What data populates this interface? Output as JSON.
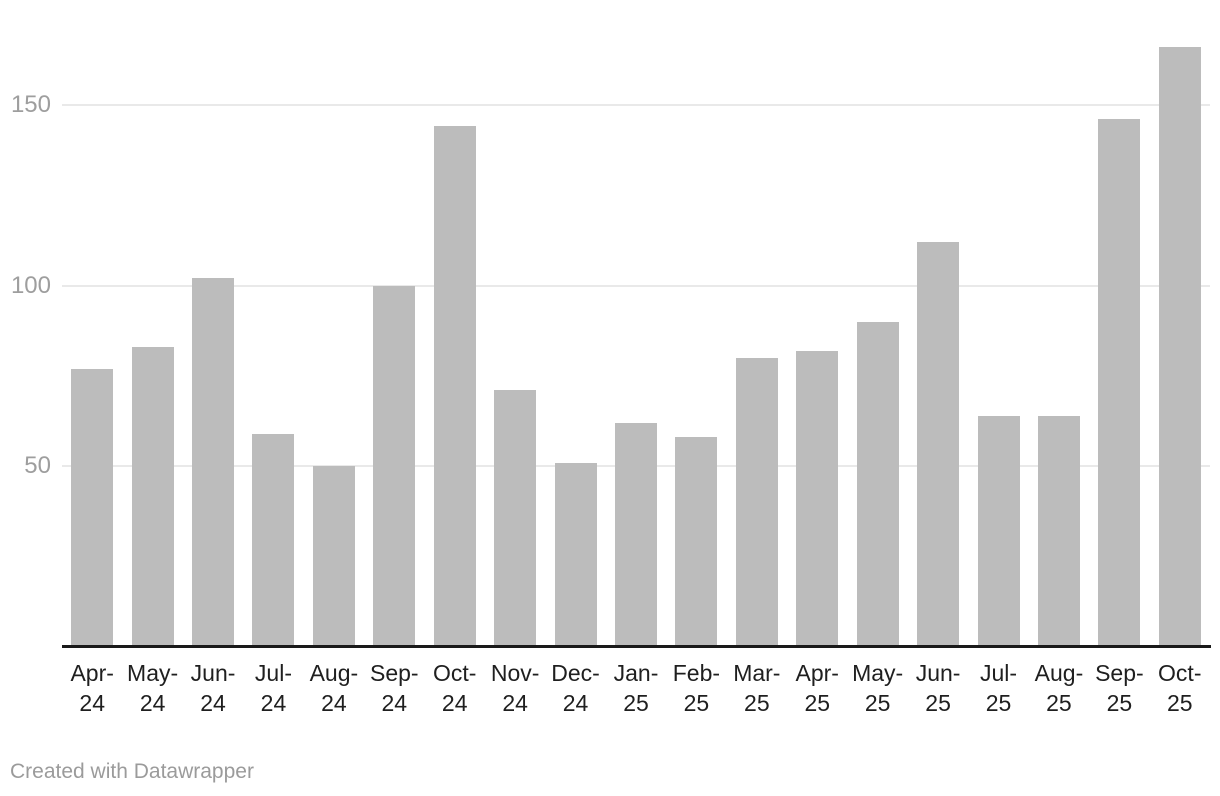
{
  "chart_data": {
    "type": "bar",
    "categories": [
      "Apr-24",
      "May-24",
      "Jun-24",
      "Jul-24",
      "Aug-24",
      "Sep-24",
      "Oct-24",
      "Nov-24",
      "Dec-24",
      "Jan-25",
      "Feb-25",
      "Mar-25",
      "Apr-25",
      "May-25",
      "Jun-25",
      "Jul-25",
      "Aug-25",
      "Sep-25",
      "Oct-25"
    ],
    "values": [
      77,
      83,
      102,
      59,
      50,
      100,
      144,
      71,
      51,
      62,
      58,
      80,
      82,
      90,
      112,
      64,
      64,
      146,
      166
    ],
    "title": "",
    "xlabel": "",
    "ylabel": "",
    "ylim": [
      0,
      179
    ],
    "yticks": [
      50,
      100,
      150
    ],
    "grid": "horizontal",
    "legend_position": "none",
    "colors": {
      "bar": "#bcbcbc",
      "gridline": "#e9e9e9",
      "axis_line": "#1a1a1a",
      "y_tick_label": "#9e9e9e",
      "x_tick_label": "#1f1f1f"
    }
  },
  "footer": {
    "credit": "Created with Datawrapper",
    "color": "#9b9b9b"
  }
}
